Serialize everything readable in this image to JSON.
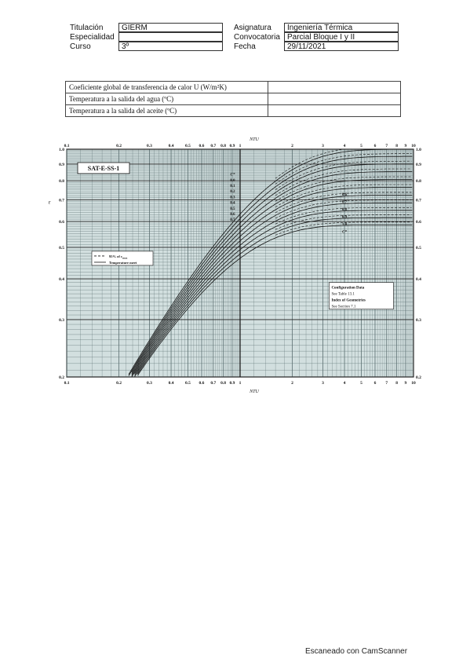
{
  "header": {
    "left": [
      {
        "label": "Titulación",
        "value": "GIERM"
      },
      {
        "label": "Especialidad",
        "value": ""
      },
      {
        "label": "Curso",
        "value": "3º"
      }
    ],
    "right": [
      {
        "label": "Asignatura",
        "value": "Ingeniería Térmica"
      },
      {
        "label": "Convocatoria",
        "value": "Parcial Bloque I y II"
      },
      {
        "label": "Fecha",
        "value": "29/11/2021"
      }
    ]
  },
  "questions": [
    "Coeficiente global de transferencia de calor U (W/m²K)",
    "Temperatura a la salida del agua (ºC)",
    "Temperatura a la salida del aceite (ºC)"
  ],
  "chart_data": {
    "type": "line",
    "title": "SAT-E-SS-1",
    "xlabel": "N_TU",
    "ylabel": "ε",
    "x_scale": "log",
    "y_scale": "log",
    "xlim": [
      0.1,
      10
    ],
    "ylim": [
      0.2,
      1.0
    ],
    "x_ticks": [
      "0.1",
      "0.2",
      "0.3",
      "0.4",
      "0.5",
      "0.6",
      "0.7",
      "0.8",
      "0.9",
      "1",
      "2",
      "3",
      "4",
      "5",
      "6",
      "7",
      "8",
      "9",
      "10"
    ],
    "y_ticks": [
      "0.2",
      "0.3",
      "0.4",
      "0.5",
      "0.6",
      "0.7",
      "0.8",
      "0.9",
      "1.0"
    ],
    "curve_labels_left": [
      "C*",
      "0.0",
      "0.1",
      "0.2",
      "0.3",
      "0.4",
      "0.5",
      "0.6",
      "0.7"
    ],
    "curve_labels_right": [
      "0.6",
      "0.7",
      "0.8",
      "0.9",
      "1.0",
      "C*"
    ],
    "series": [
      {
        "name": "0.0",
        "cr": 0.0
      },
      {
        "name": "0.1",
        "cr": 0.1
      },
      {
        "name": "0.2",
        "cr": 0.2
      },
      {
        "name": "0.3",
        "cr": 0.3
      },
      {
        "name": "0.4",
        "cr": 0.4
      },
      {
        "name": "0.5",
        "cr": 0.5
      },
      {
        "name": "0.6",
        "cr": 0.6
      },
      {
        "name": "0.7",
        "cr": 0.7
      },
      {
        "name": "0.8",
        "cr": 0.8
      },
      {
        "name": "0.9",
        "cr": 0.9
      },
      {
        "name": "1.0",
        "cr": 1.0
      }
    ],
    "legend": {
      "dashed": "95% of ε",
      "dashed_sub": "max",
      "solid": "Temperature meet"
    },
    "info_box": [
      "Configuration Data",
      "See Table 13.1",
      "Index of Geometries",
      "See Section 7.1"
    ],
    "grid": true
  },
  "footer": "Escaneado con CamScanner"
}
